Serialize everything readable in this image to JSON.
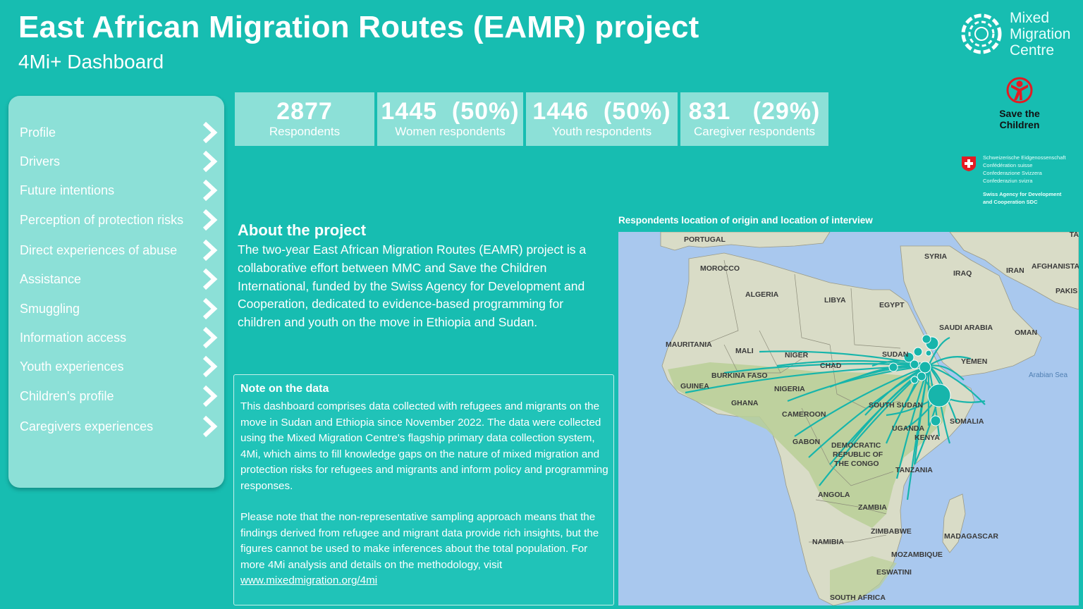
{
  "header": {
    "title": "East African Migration Routes (EAMR) project",
    "subtitle": "4Mi+ Dashboard"
  },
  "logos": {
    "mmc": [
      "Mixed",
      "Migration",
      "Centre"
    ],
    "stc": [
      "Save the",
      "Children"
    ],
    "swiss_lines": [
      "Schweizerische Eidgenossenschaft",
      "Confédération suisse",
      "Confederazione Svizzera",
      "Confederaziun svizra"
    ],
    "sdc_lines": [
      "Swiss Agency for Development",
      "and Cooperation SDC"
    ]
  },
  "nav": {
    "items": [
      "Profile",
      "Drivers",
      "Future intentions",
      "Perception of protection risks",
      "Direct experiences of abuse",
      "Assistance",
      "Smuggling",
      "Information access",
      "Youth experiences",
      "Children's profile",
      "Caregivers experiences"
    ]
  },
  "kpis": [
    {
      "value": "2877",
      "label": "Respondents"
    },
    {
      "value": "1445  (50%)",
      "label": "Women respondents"
    },
    {
      "value": "1446  (50%)",
      "label": "Youth respondents"
    },
    {
      "value": "831   (29%)",
      "label": "Caregiver respondents"
    }
  ],
  "about": {
    "title": "About the project",
    "body": "The two-year East African Migration Routes (EAMR) project is a collaborative effort between MMC and Save the Children International, funded by the Swiss Agency for Development and Cooperation, dedicated to evidence-based programming for children and youth on the move in Ethiopia and Sudan."
  },
  "note": {
    "title": "Note on the data",
    "p1": "This dashboard comprises data collected with refugees and migrants on the move in Sudan and Ethiopia since November 2022. The data were collected using the Mixed Migration Centre's flagship primary data collection system, 4Mi, which aims to fill knowledge gaps on the nature of mixed migration and protection risks for refugees and migrants and inform policy and programming responses.",
    "p2": "Please note that the non-representative sampling approach means that the findings derived from refugee and migrant data provide rich insights, but the figures cannot be used to make inferences about the total population. For more 4Mi analysis and details on the methodology, visit ",
    "link": "www.mixedmigration.org/4mi"
  },
  "map": {
    "title": "Respondents location of origin and location of interview",
    "colors": {
      "ocean": "#a9c8ee",
      "land": "#d9dcc7",
      "green": "#b9cf97",
      "route": "#17b5ab"
    },
    "countries": [
      "PORTUGAL",
      "MOROCCO",
      "ALGERIA",
      "LIBYA",
      "EGYPT",
      "SYRIA",
      "IRAQ",
      "IRAN",
      "AFGHANISTA",
      "PAKIS",
      "TA",
      "SAUDI ARABIA",
      "OMAN",
      "YEMEN",
      "Arabian Sea",
      "MAURITANIA",
      "MALI",
      "NIGER",
      "SUDAN",
      "CHAD",
      "BURKINA FASO",
      "GUINEA",
      "NIGERIA",
      "GHANA",
      "SOUTH SUDAN",
      "CAMEROON",
      "SOMALIA",
      "UGANDA",
      "KENYA",
      "GABON",
      "DEMOCRATIC",
      "REPUBLIC OF",
      "THE CONGO",
      "TANZANIA",
      "ANGOLA",
      "ZAMBIA",
      "ZIMBABWE",
      "MADAGASCAR",
      "NAMIBIA",
      "MOZAMBIQUE",
      "ESWATINI",
      "SOUTH AFRICA"
    ]
  }
}
